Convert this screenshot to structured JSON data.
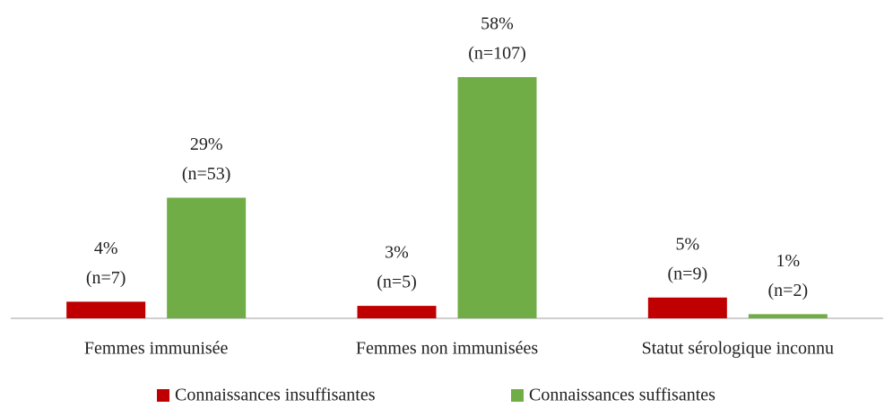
{
  "chart_data": {
    "type": "bar",
    "categories": [
      "Femmes immunisée",
      "Femmes non immunisées",
      "Statut sérologique inconnu"
    ],
    "series": [
      {
        "name": "Connaissances insuffisantes",
        "color": "#c00000",
        "values": [
          4,
          3,
          5
        ],
        "value_labels": [
          [
            "4%",
            "(n=7)"
          ],
          [
            "3%",
            "(n=5)"
          ],
          [
            "5%",
            "(n=9)"
          ]
        ]
      },
      {
        "name": "Connaissances suffisantes",
        "color": "#70ad47",
        "values": [
          29,
          58,
          1
        ],
        "value_labels": [
          [
            "29%",
            "(n=53)"
          ],
          [
            "58%",
            "(n=107)"
          ],
          [
            "1%",
            "(n=2)"
          ]
        ]
      }
    ],
    "legend": "bottom"
  }
}
